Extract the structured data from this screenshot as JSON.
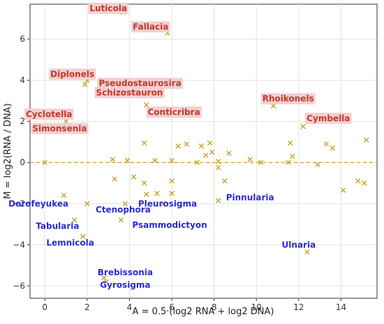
{
  "chart_data": {
    "type": "scatter",
    "title": "",
    "xlabel": "A = 0.5·(log2 RNA + log2 DNA)",
    "ylabel": "M = log2(RNA / DNA)",
    "xlim": [
      -0.7,
      15.7
    ],
    "ylim": [
      -6.6,
      7.7
    ],
    "xticks": [
      0,
      2,
      4,
      6,
      8,
      10,
      12,
      14
    ],
    "yticks": [
      -6,
      -4,
      -2,
      0,
      2,
      4,
      6
    ],
    "grid": true,
    "reference_line": {
      "y": 0,
      "color": "#d4a017",
      "style": "dashed"
    },
    "marker": {
      "shape": "x",
      "color": "#c9a227"
    },
    "points": [
      {
        "x": 0.0,
        "y": 0.0
      },
      {
        "x": 0.9,
        "y": -1.6
      },
      {
        "x": 1.0,
        "y": 2.0
      },
      {
        "x": 1.4,
        "y": -2.8
      },
      {
        "x": 1.9,
        "y": 3.8
      },
      {
        "x": 2.0,
        "y": 4.0
      },
      {
        "x": 2.0,
        "y": -2.0
      },
      {
        "x": 1.8,
        "y": -3.6
      },
      {
        "x": 2.8,
        "y": -5.6
      },
      {
        "x": 2.9,
        "y": -5.8
      },
      {
        "x": 3.2,
        "y": 0.15
      },
      {
        "x": 3.3,
        "y": -0.8
      },
      {
        "x": 3.6,
        "y": -2.8
      },
      {
        "x": 3.7,
        "y": 7.3
      },
      {
        "x": 3.8,
        "y": -2.0
      },
      {
        "x": 3.9,
        "y": 0.1
      },
      {
        "x": 4.2,
        "y": -0.7
      },
      {
        "x": 4.7,
        "y": -1.0
      },
      {
        "x": 4.7,
        "y": 0.95
      },
      {
        "x": 4.8,
        "y": -1.55
      },
      {
        "x": 4.8,
        "y": 2.8
      },
      {
        "x": 5.2,
        "y": 0.1
      },
      {
        "x": 5.3,
        "y": -1.5
      },
      {
        "x": 5.6,
        "y": -2.0
      },
      {
        "x": 5.8,
        "y": 6.3
      },
      {
        "x": 6.0,
        "y": 0.1
      },
      {
        "x": 6.0,
        "y": -0.9
      },
      {
        "x": 6.0,
        "y": -1.5
      },
      {
        "x": 6.3,
        "y": 0.8
      },
      {
        "x": 6.7,
        "y": 0.9
      },
      {
        "x": 7.2,
        "y": 0.0
      },
      {
        "x": 7.4,
        "y": 0.8
      },
      {
        "x": 7.6,
        "y": 0.35
      },
      {
        "x": 7.8,
        "y": 0.95
      },
      {
        "x": 7.9,
        "y": 0.5
      },
      {
        "x": 8.2,
        "y": 0.05
      },
      {
        "x": 8.2,
        "y": -0.25
      },
      {
        "x": 8.2,
        "y": -1.85
      },
      {
        "x": 8.5,
        "y": -0.9
      },
      {
        "x": 8.7,
        "y": 0.45
      },
      {
        "x": 9.7,
        "y": 0.15
      },
      {
        "x": 10.2,
        "y": 0.0
      },
      {
        "x": 10.8,
        "y": 2.75
      },
      {
        "x": 11.5,
        "y": 0.0
      },
      {
        "x": 11.6,
        "y": 0.95
      },
      {
        "x": 11.7,
        "y": 0.3
      },
      {
        "x": 12.2,
        "y": 1.75
      },
      {
        "x": 12.4,
        "y": -4.35
      },
      {
        "x": 12.9,
        "y": -0.1
      },
      {
        "x": 13.3,
        "y": 0.9
      },
      {
        "x": 13.6,
        "y": 0.7
      },
      {
        "x": 14.1,
        "y": -1.35
      },
      {
        "x": 14.8,
        "y": -0.9
      },
      {
        "x": 15.1,
        "y": -1.0
      },
      {
        "x": 15.2,
        "y": 1.1
      }
    ],
    "annotations": [
      {
        "text": "Luticola",
        "x": 3.0,
        "y": 7.5,
        "color": "red"
      },
      {
        "text": "Fallacia",
        "x": 5.0,
        "y": 6.6,
        "color": "red"
      },
      {
        "text": "Diplonels",
        "x": 1.3,
        "y": 4.3,
        "color": "red"
      },
      {
        "text": "Pseudostaurosira",
        "x": 4.5,
        "y": 3.85,
        "color": "red"
      },
      {
        "text": "Schizostauron",
        "x": 4.0,
        "y": 3.4,
        "color": "red"
      },
      {
        "text": "Cyclotella",
        "x": 0.2,
        "y": 2.35,
        "color": "red"
      },
      {
        "text": "Conticribra",
        "x": 6.1,
        "y": 2.45,
        "color": "red"
      },
      {
        "text": "Simonsenia",
        "x": 0.7,
        "y": 1.65,
        "color": "red"
      },
      {
        "text": "Rhoikonels",
        "x": 11.5,
        "y": 3.1,
        "color": "red"
      },
      {
        "text": "Cymbella",
        "x": 13.4,
        "y": 2.15,
        "color": "red"
      },
      {
        "text": "Dorofeyukea",
        "x": -0.3,
        "y": -2.0,
        "color": "blue"
      },
      {
        "text": "Ctenophora",
        "x": 3.7,
        "y": -2.3,
        "color": "blue"
      },
      {
        "text": "Pleurosigma",
        "x": 5.8,
        "y": -2.0,
        "color": "blue"
      },
      {
        "text": "Pinnularia",
        "x": 9.7,
        "y": -1.7,
        "color": "blue"
      },
      {
        "text": "Tabularia",
        "x": 0.6,
        "y": -3.1,
        "color": "blue"
      },
      {
        "text": "Psammodictyon",
        "x": 5.9,
        "y": -3.05,
        "color": "blue"
      },
      {
        "text": "Lemnicola",
        "x": 1.2,
        "y": -3.9,
        "color": "blue"
      },
      {
        "text": "Ulnaria",
        "x": 12.0,
        "y": -4.0,
        "color": "blue"
      },
      {
        "text": "Brebissonia",
        "x": 3.8,
        "y": -5.35,
        "color": "blue"
      },
      {
        "text": "Gyrosigma",
        "x": 3.8,
        "y": -5.95,
        "color": "blue"
      }
    ]
  },
  "colors": {
    "marker": "#c9a227",
    "reference_line": "#d4a017",
    "label_red": "#c0392b",
    "label_red_bg": "#f3cfcf",
    "label_blue": "#2a2ad8",
    "grid": "#e2e2e2"
  }
}
